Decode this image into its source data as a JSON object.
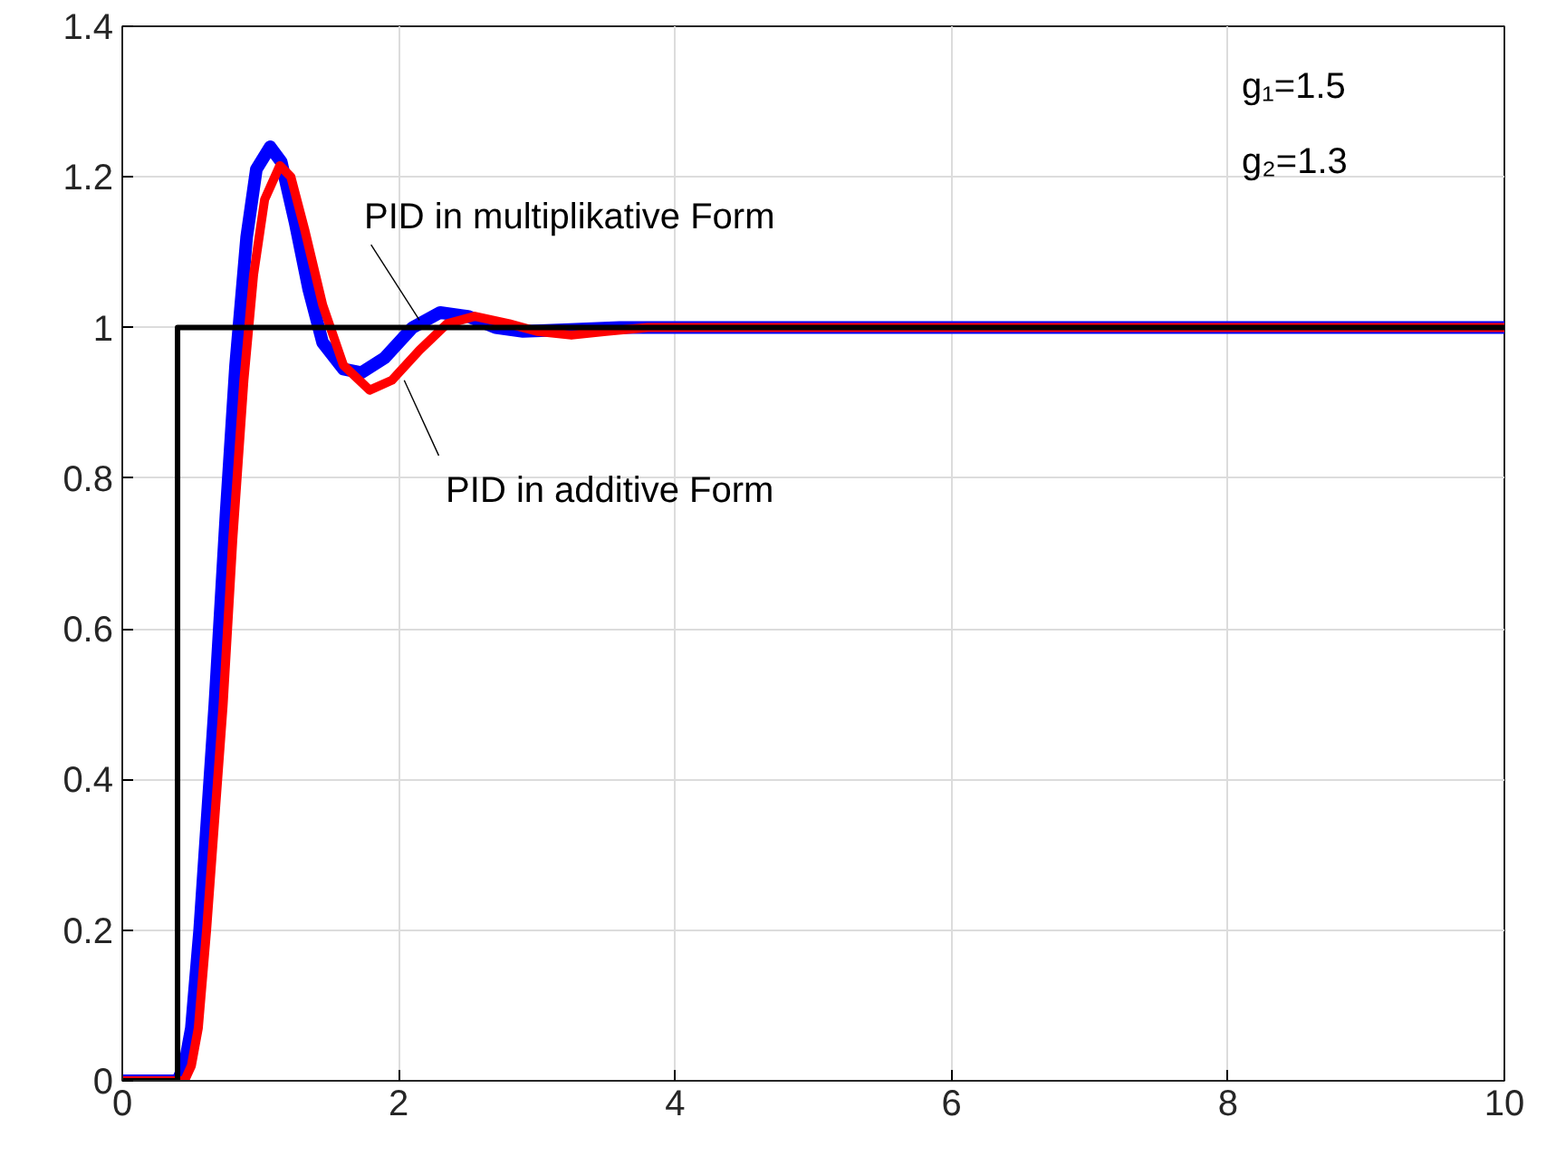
{
  "chart_data": {
    "type": "line",
    "xlim": [
      0,
      10
    ],
    "ylim": [
      0,
      1.4
    ],
    "xticks": [
      0,
      2,
      4,
      6,
      8,
      10
    ],
    "yticks": [
      0,
      0.2,
      0.4,
      0.6,
      0.8,
      1,
      1.2,
      1.4
    ],
    "grid": true,
    "marker": "none",
    "line_style": "solid",
    "series": [
      {
        "color": "#0000ff",
        "x": [
          0,
          0.4,
          0.45,
          0.5,
          0.56,
          0.67,
          0.75,
          0.82,
          0.9,
          0.97,
          1.07,
          1.15,
          1.25,
          1.35,
          1.45,
          1.6,
          1.73,
          1.9,
          2.1,
          2.3,
          2.5,
          2.7,
          2.9,
          3.2,
          3.6,
          10
        ],
        "values": [
          0,
          0,
          0.02,
          0.07,
          0.2,
          0.5,
          0.75,
          0.95,
          1.12,
          1.21,
          1.24,
          1.22,
          1.14,
          1.05,
          0.98,
          0.945,
          0.94,
          0.96,
          1.0,
          1.02,
          1.015,
          1.0,
          0.995,
          0.997,
          1.0,
          1.0
        ]
      },
      {
        "color": "#ff0000",
        "x": [
          0,
          0.45,
          0.5,
          0.55,
          0.61,
          0.73,
          0.8,
          0.88,
          0.95,
          1.03,
          1.14,
          1.22,
          1.32,
          1.45,
          1.6,
          1.79,
          1.95,
          2.15,
          2.35,
          2.55,
          2.8,
          3.0,
          3.25,
          3.5,
          3.8,
          10
        ],
        "values": [
          0,
          0,
          0.02,
          0.07,
          0.2,
          0.5,
          0.72,
          0.93,
          1.07,
          1.17,
          1.215,
          1.2,
          1.13,
          1.03,
          0.95,
          0.917,
          0.93,
          0.97,
          1.005,
          1.015,
          1.005,
          0.995,
          0.99,
          0.995,
          1.0,
          1.0
        ]
      },
      {
        "color": "#000000",
        "x": [
          0,
          0.4,
          0.4,
          10
        ],
        "values": [
          0,
          0,
          1,
          1
        ]
      }
    ],
    "annotations": [
      {
        "text": "PID in multiplikative Form",
        "x": 2.15,
        "y": 1.01
      },
      {
        "text": "PID in additive Form",
        "x": 2.04,
        "y": 0.93
      },
      "g₁=1.5",
      "g₂=1.3"
    ]
  }
}
